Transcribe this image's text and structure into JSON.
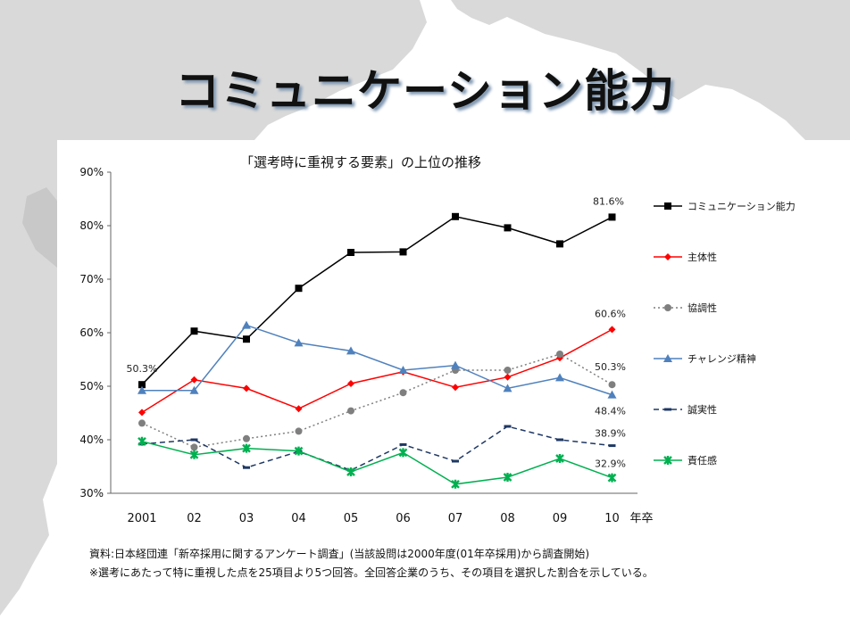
{
  "slide": {
    "title": "コミュニケーション能力",
    "note1": "資料:日本経団連「新卒採用に関するアンケート調査」(当該設問は2000年度(01年卒採用)から調査開始)",
    "note2": "※選考にあたって特に重視した点を25項目より5つ回答。全回答企業のうち、その項目を選択した割合を示している。"
  },
  "chart_data": {
    "type": "line",
    "title": "「選考時に重視する要素」の上位の推移",
    "x_label": "年卒",
    "categories": [
      "2001",
      "02",
      "03",
      "04",
      "05",
      "06",
      "07",
      "08",
      "09",
      "10"
    ],
    "y_ticks": [
      "90%",
      "80%",
      "70%",
      "60%",
      "50%",
      "40%",
      "30%"
    ],
    "ylim": [
      30,
      90
    ],
    "legend_position": "right",
    "grid": false,
    "series": [
      {
        "name": "コミュニケーション能力",
        "color": "#000000",
        "dash": "solid",
        "marker": "square",
        "values": [
          50.3,
          60.3,
          58.8,
          68.3,
          75.0,
          75.1,
          81.7,
          79.6,
          76.6,
          81.6
        ]
      },
      {
        "name": "主体性",
        "color": "#ff0000",
        "dash": "solid",
        "marker": "diamond",
        "values": [
          45.1,
          51.2,
          49.6,
          45.8,
          50.5,
          52.7,
          49.8,
          51.7,
          55.3,
          60.6
        ]
      },
      {
        "name": "協調性",
        "color": "#7f7f7f",
        "dash": "dotted",
        "marker": "circle",
        "values": [
          43.1,
          38.6,
          40.2,
          41.6,
          45.4,
          48.8,
          53.0,
          53.0,
          56.0,
          50.3
        ]
      },
      {
        "name": "チャレンジ精神",
        "color": "#4f81bd",
        "dash": "solid",
        "marker": "triangle",
        "values": [
          49.2,
          49.2,
          61.4,
          58.1,
          56.6,
          53.0,
          53.9,
          49.6,
          51.6,
          48.4
        ]
      },
      {
        "name": "誠実性",
        "color": "#1f3864",
        "dash": "dashed",
        "marker": "dash",
        "values": [
          39.2,
          40.0,
          34.8,
          37.8,
          34.3,
          39.1,
          36.0,
          42.5,
          40.0,
          38.9
        ]
      },
      {
        "name": "責任感",
        "color": "#00b050",
        "dash": "solid",
        "marker": "asterisk",
        "values": [
          39.7,
          37.2,
          38.4,
          37.9,
          34.0,
          37.6,
          31.7,
          33.0,
          36.5,
          32.9
        ]
      }
    ],
    "data_labels": [
      {
        "series": "コミュニケーション能力",
        "category": "2001",
        "text": "50.3%"
      },
      {
        "series": "コミュニケーション能力",
        "category": "10",
        "text": "81.6%"
      },
      {
        "series": "主体性",
        "category": "10",
        "text": "60.6%"
      },
      {
        "series": "協調性",
        "category": "10",
        "text": "50.3%"
      },
      {
        "series": "チャレンジ精神",
        "category": "10",
        "text": "48.4%"
      },
      {
        "series": "誠実性",
        "category": "10",
        "text": "38.9%"
      },
      {
        "series": "責任感",
        "category": "10",
        "text": "32.9%"
      }
    ]
  }
}
